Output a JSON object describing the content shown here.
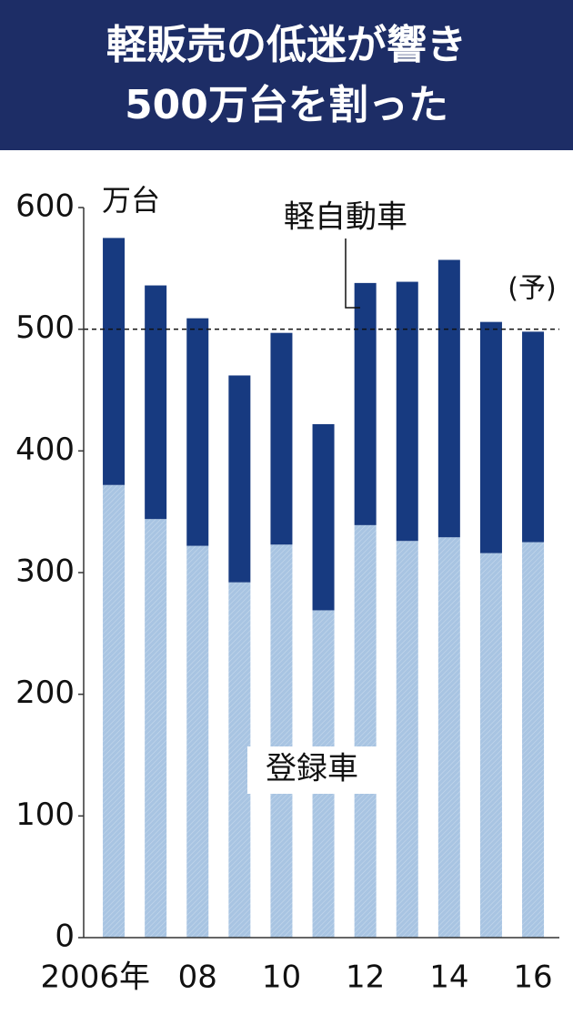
{
  "chart_data": {
    "type": "stacked_bar",
    "title": [
      "軽販売の低迷が響き",
      "500万台を割った"
    ],
    "y_unit": "万台",
    "annotation": "(予)",
    "hline": 500,
    "categories": [
      "2006年",
      null,
      "08",
      null,
      "10",
      null,
      "12",
      null,
      "14",
      null,
      "16"
    ],
    "series": [
      {
        "name": "登録車",
        "color": "#a8c4e2",
        "values": [
          372,
          344,
          322,
          292,
          323,
          269,
          339,
          326,
          329,
          316,
          325
        ]
      },
      {
        "name": "軽自動車",
        "color": "#173a80",
        "values": [
          203,
          192,
          187,
          170,
          174,
          153,
          199,
          213,
          228,
          190,
          173
        ]
      }
    ],
    "ylim": [
      0,
      600
    ],
    "yticks": [
      0,
      100,
      200,
      300,
      400,
      500,
      600
    ]
  }
}
